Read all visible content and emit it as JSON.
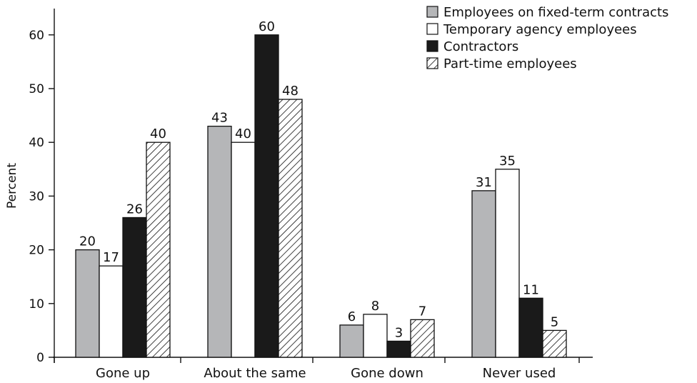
{
  "chart_data": {
    "type": "bar",
    "title": "",
    "xlabel": "",
    "ylabel": "Percent",
    "ylim": [
      0,
      70
    ],
    "yticks": [
      0,
      10,
      20,
      30,
      40,
      50,
      60
    ],
    "grid": false,
    "legend_position": "top-right",
    "categories": [
      "Gone up",
      "About the same",
      "Gone down",
      "Never used"
    ],
    "series": [
      {
        "name": "Employees on fixed-term contracts",
        "fill": "gray",
        "color": "#b5b6b8",
        "values": [
          20,
          43,
          6,
          31
        ]
      },
      {
        "name": "Temporary agency employees",
        "fill": "white",
        "color": "#ffffff",
        "values": [
          17,
          40,
          8,
          35
        ]
      },
      {
        "name": "Contractors",
        "fill": "black",
        "color": "#1a1a1a",
        "values": [
          26,
          60,
          3,
          11
        ]
      },
      {
        "name": "Part-time employees",
        "fill": "hatch",
        "color": "#ffffff",
        "values": [
          40,
          48,
          7,
          5
        ]
      }
    ]
  }
}
